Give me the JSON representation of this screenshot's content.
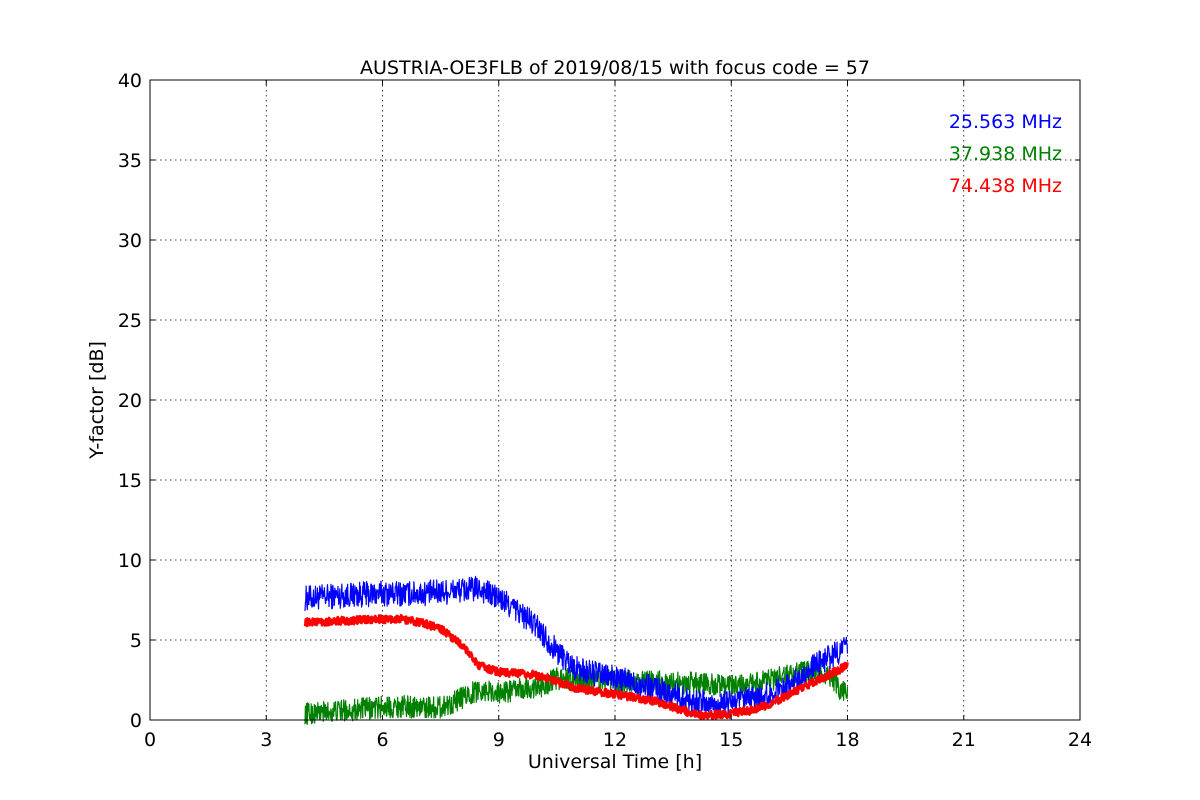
{
  "chart_data": {
    "type": "line",
    "title": "AUSTRIA-OE3FLB of 2019/08/15 with focus code = 57",
    "xlabel": "Universal Time [h]",
    "ylabel": "Y-factor [dB]",
    "xlim": [
      0,
      24
    ],
    "ylim": [
      0,
      40
    ],
    "xticks": [
      "0",
      "3",
      "6",
      "9",
      "12",
      "15",
      "18",
      "21",
      "24"
    ],
    "yticks": [
      "0",
      "5",
      "10",
      "15",
      "20",
      "25",
      "30",
      "35",
      "40"
    ],
    "grid": true,
    "legend_position": "top-right",
    "series": [
      {
        "name": "25.563 MHz",
        "color": "#0000ff",
        "band": 0.8,
        "x": [
          4.0,
          5.0,
          6.0,
          7.0,
          7.5,
          8.0,
          8.5,
          9.0,
          9.5,
          10.0,
          10.5,
          11.0,
          11.5,
          12.0,
          12.5,
          13.0,
          13.5,
          14.0,
          14.5,
          15.0,
          15.5,
          16.0,
          16.5,
          17.0,
          17.5,
          18.0
        ],
        "y": [
          7.6,
          7.8,
          7.9,
          7.9,
          8.0,
          8.1,
          8.2,
          7.6,
          6.8,
          5.8,
          4.3,
          3.2,
          2.9,
          2.6,
          2.3,
          2.0,
          1.6,
          1.2,
          1.0,
          1.1,
          1.3,
          1.6,
          2.2,
          3.1,
          3.9,
          4.6
        ]
      },
      {
        "name": "37.938 MHz",
        "color": "#008000",
        "band": 0.7,
        "x": [
          4.0,
          4.5,
          5.0,
          5.5,
          6.0,
          6.5,
          7.0,
          7.5,
          8.0,
          8.5,
          9.0,
          9.5,
          10.0,
          10.5,
          11.0,
          11.5,
          12.0,
          12.5,
          13.0,
          13.5,
          14.0,
          14.5,
          15.0,
          15.5,
          16.0,
          16.5,
          17.0,
          17.5,
          17.8,
          18.0
        ],
        "y": [
          0.4,
          0.5,
          0.6,
          0.7,
          0.8,
          0.85,
          0.8,
          0.8,
          1.3,
          1.9,
          1.7,
          1.9,
          2.0,
          2.6,
          2.5,
          2.6,
          2.4,
          2.4,
          2.4,
          2.3,
          2.3,
          2.2,
          2.1,
          2.2,
          2.5,
          2.8,
          3.0,
          2.8,
          1.8,
          2.0
        ]
      },
      {
        "name": "74.438 MHz",
        "color": "#ff0000",
        "band": 0.25,
        "x": [
          4.0,
          5.0,
          6.0,
          6.5,
          7.0,
          7.5,
          8.0,
          8.5,
          9.0,
          9.5,
          10.0,
          10.5,
          11.0,
          11.5,
          12.0,
          12.5,
          13.0,
          13.5,
          14.0,
          14.5,
          15.0,
          15.5,
          16.0,
          16.5,
          17.0,
          17.5,
          18.0
        ],
        "y": [
          6.1,
          6.2,
          6.3,
          6.3,
          6.1,
          5.7,
          4.8,
          3.4,
          3.0,
          2.9,
          2.8,
          2.4,
          2.0,
          1.8,
          1.6,
          1.4,
          1.2,
          0.8,
          0.4,
          0.3,
          0.4,
          0.6,
          1.0,
          1.6,
          2.2,
          2.8,
          3.4
        ]
      }
    ]
  }
}
